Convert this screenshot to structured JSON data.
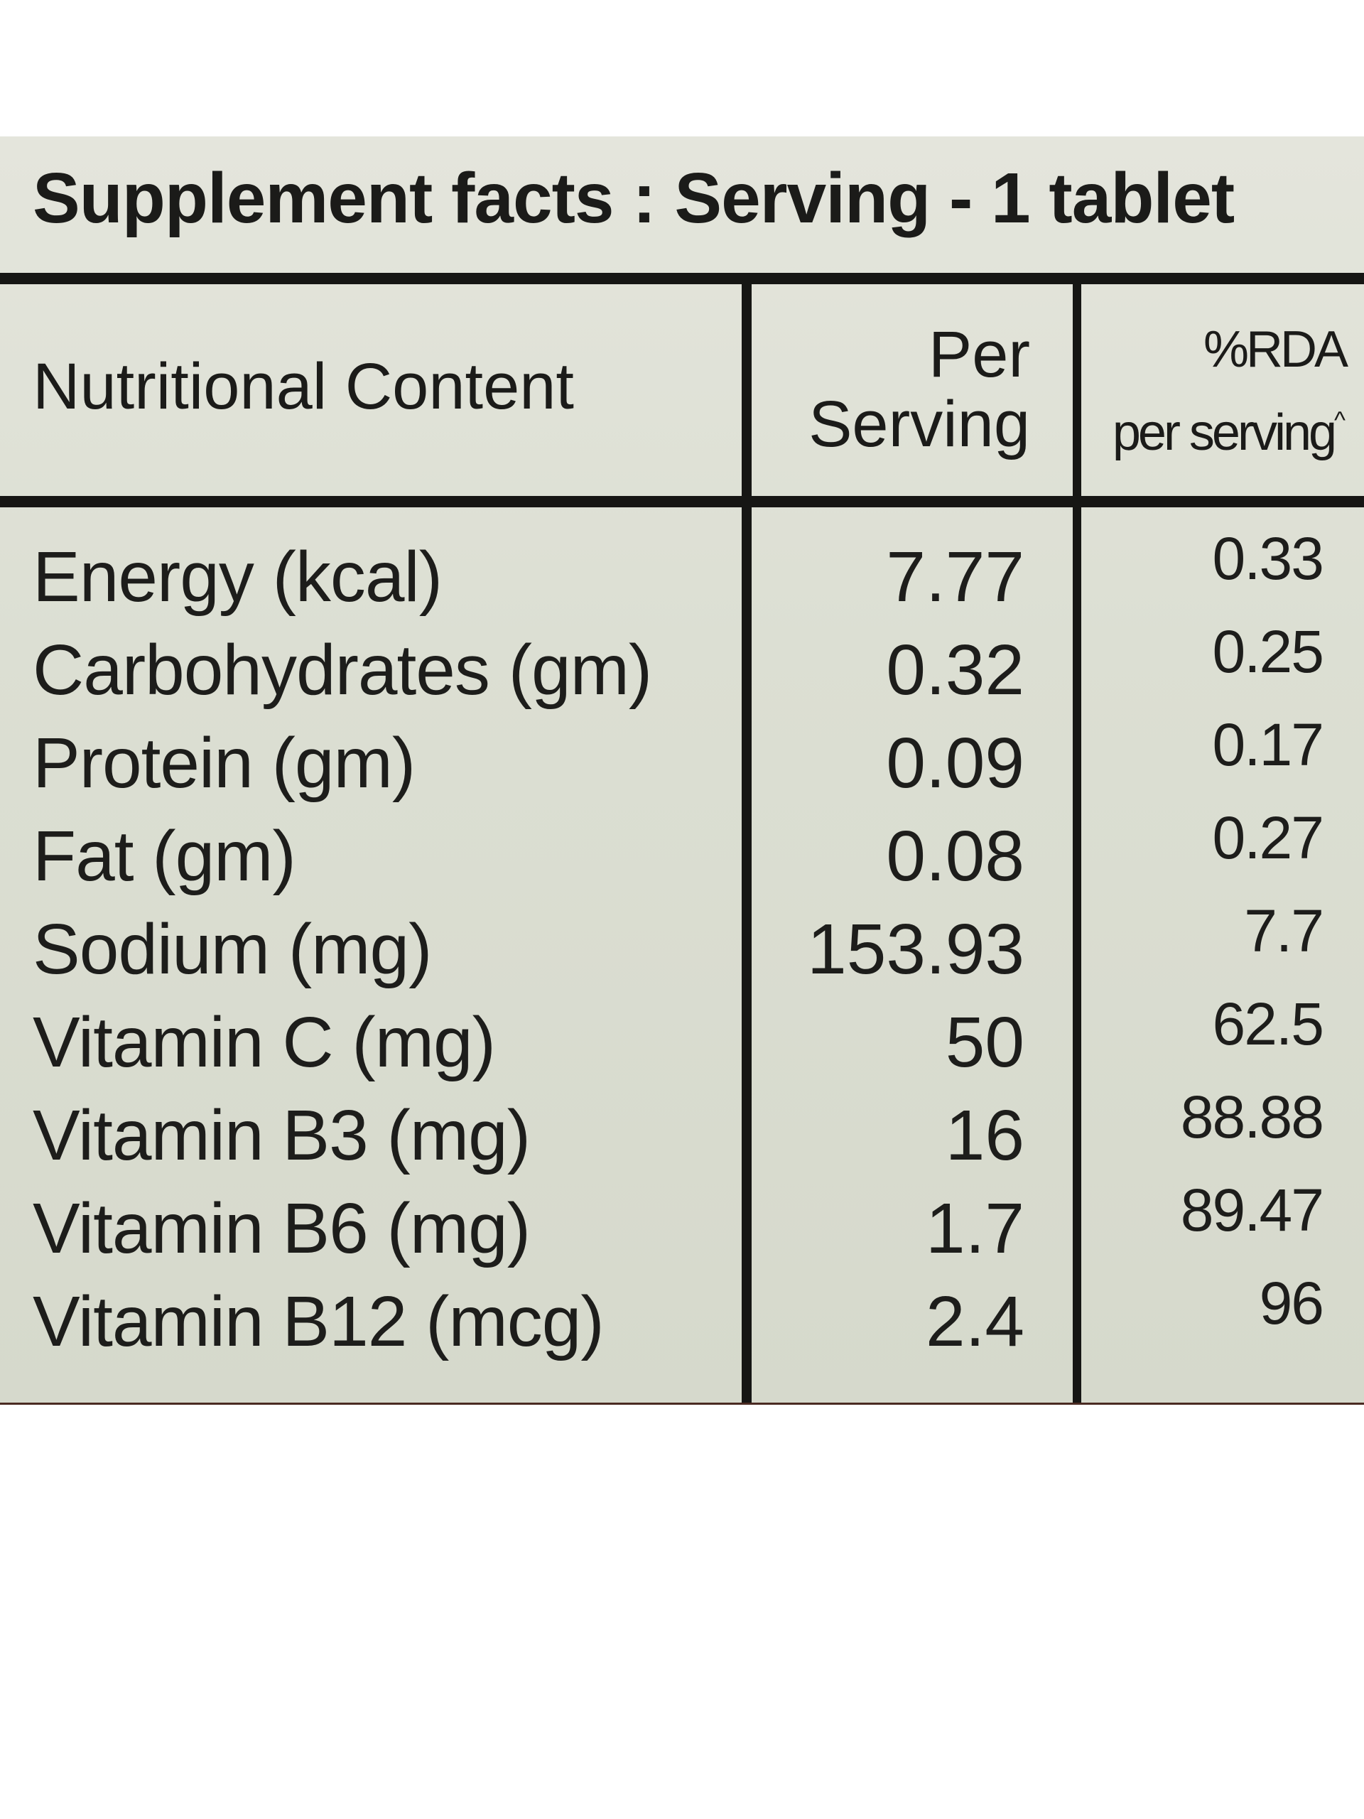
{
  "label": {
    "title": "Supplement facts : Serving - 1 tablet",
    "columns": {
      "nutrient": "Nutritional Content",
      "per_serving_line1": "Per",
      "per_serving_line2": "Serving",
      "rda_line1": "%RDA",
      "rda_line2": "per serving",
      "rda_mark": "^"
    },
    "rows": [
      {
        "name": "Energy (kcal)",
        "per_serving": "7.77",
        "rda": "0.33"
      },
      {
        "name": "Carbohydrates (gm)",
        "per_serving": "0.32",
        "rda": "0.25"
      },
      {
        "name": "Protein (gm)",
        "per_serving": "0.09",
        "rda": "0.17"
      },
      {
        "name": "Fat (gm)",
        "per_serving": "0.08",
        "rda": "0.27"
      },
      {
        "name": "Sodium (mg)",
        "per_serving": "153.93",
        "rda": "7.7"
      },
      {
        "name": "Vitamin C (mg)",
        "per_serving": "50",
        "rda": "62.5"
      },
      {
        "name": "Vitamin B3 (mg)",
        "per_serving": "16",
        "rda": "88.88"
      },
      {
        "name": "Vitamin B6 (mg)",
        "per_serving": "1.7",
        "rda": "89.47"
      },
      {
        "name": "Vitamin B12 (mcg)",
        "per_serving": "2.4",
        "rda": "96"
      }
    ]
  }
}
